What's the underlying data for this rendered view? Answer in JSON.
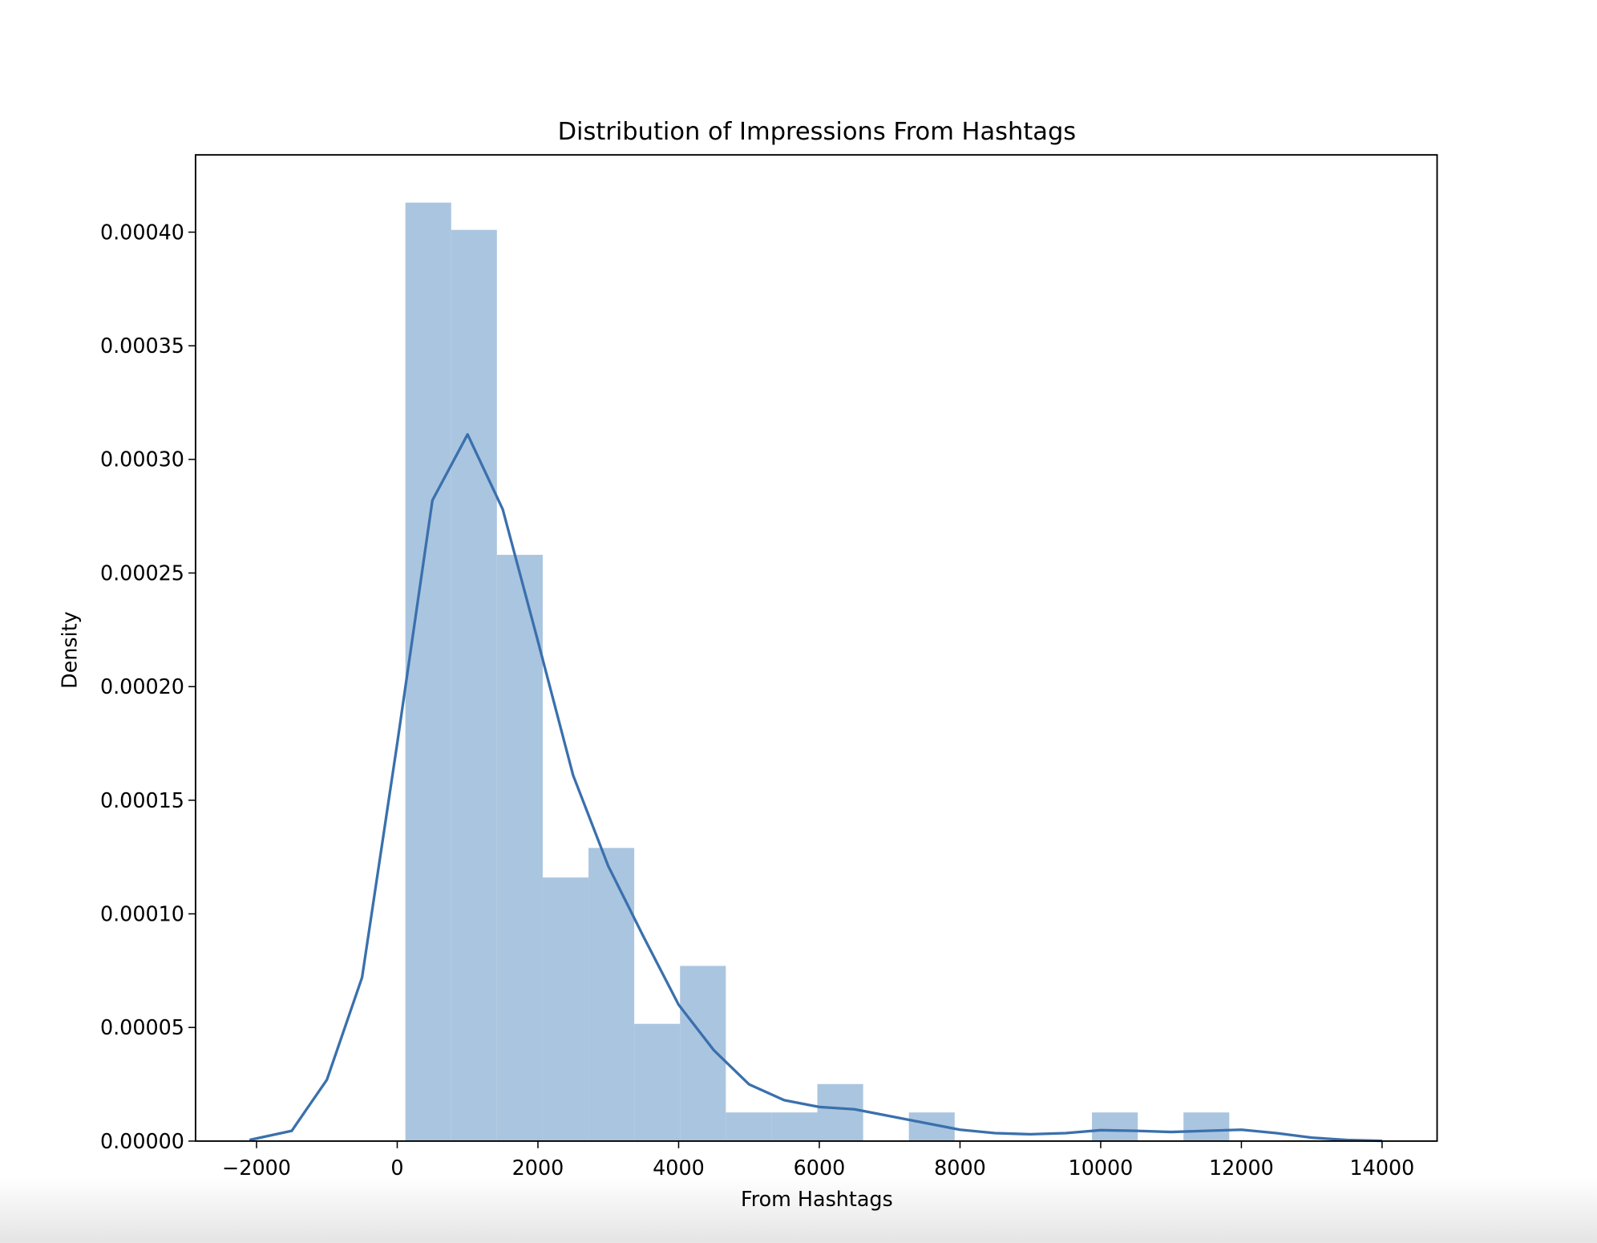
{
  "chart_data": {
    "type": "histogram",
    "title": "Distribution of Impressions From Hashtags",
    "xlabel": "From Hashtags",
    "ylabel": "Density",
    "bins": [
      116,
      767,
      1417,
      2068,
      2719,
      3369,
      4020,
      4671,
      5321,
      5972,
      6623,
      7273,
      7924,
      8575,
      9225,
      9876,
      10527,
      11177,
      11828
    ],
    "values": [
      0.000413,
      0.000401,
      0.000258,
      0.000116,
      0.000129,
      5.16e-05,
      7.71e-05,
      1.26e-05,
      1.26e-05,
      2.51e-05,
      0,
      1.26e-05,
      0,
      0,
      0,
      1.26e-05,
      0,
      1.26e-05
    ],
    "color": "#aac5df",
    "kde": {
      "color": "#3a70ad",
      "x": [
        -2100,
        -1500,
        -1000,
        -500,
        0,
        500,
        1000,
        1500,
        2000,
        2500,
        3000,
        3500,
        4000,
        4500,
        5000,
        5500,
        6000,
        6500,
        7000,
        7500,
        8000,
        8500,
        9000,
        9500,
        10000,
        10500,
        11000,
        11500,
        12000,
        12500,
        13000,
        13500,
        14000
      ],
      "values": [
        5e-07,
        4.5e-06,
        2.7e-05,
        7.2e-05,
        0.000175,
        0.000282,
        0.000311,
        0.000278,
        0.00022,
        0.000161,
        0.000121,
        9e-05,
        6e-05,
        4e-05,
        2.5e-05,
        1.8e-05,
        1.5e-05,
        1.4e-05,
        1.1e-05,
        8e-06,
        5e-06,
        3.5e-06,
        3e-06,
        3.5e-06,
        4.8e-06,
        4.5e-06,
        4e-06,
        4.5e-06,
        5e-06,
        3.5e-06,
        1.5e-06,
        5e-07,
        1e-07
      ]
    },
    "xlim": [
      -2867,
      14782
    ],
    "ylim": [
      0,
      0.000434
    ],
    "xticks": [
      {
        "value": -2000,
        "label": "−2000"
      },
      0,
      2000,
      4000,
      6000,
      8000,
      10000,
      12000,
      14000
    ],
    "yticks": [
      {
        "value": 0,
        "label": "0.00000"
      },
      {
        "value": 5e-05,
        "label": "0.00005"
      },
      {
        "value": 0.0001,
        "label": "0.00010"
      },
      {
        "value": 0.00015,
        "label": "0.00015"
      },
      {
        "value": 0.0002,
        "label": "0.00020"
      },
      {
        "value": 0.00025,
        "label": "0.00025"
      },
      {
        "value": 0.0003,
        "label": "0.00030"
      },
      {
        "value": 0.00035,
        "label": "0.00035"
      },
      {
        "value": 0.0004,
        "label": "0.00040"
      }
    ]
  }
}
